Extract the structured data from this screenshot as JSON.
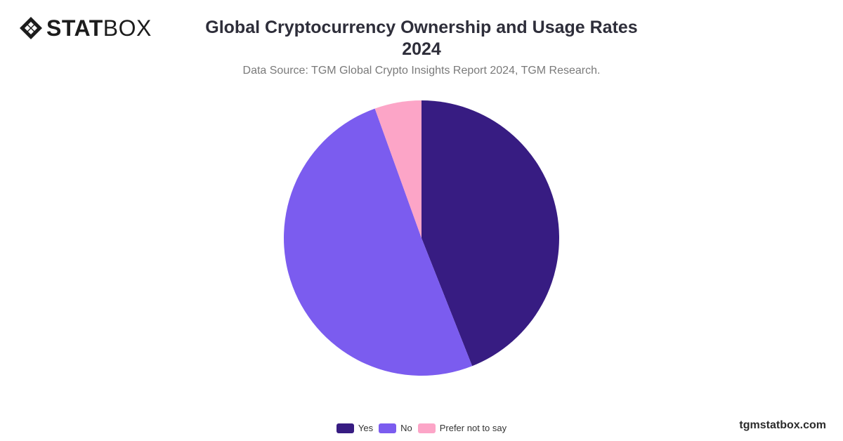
{
  "brand": {
    "bold": "STAT",
    "light": "BOX"
  },
  "header": {
    "title": "Global Cryptocurrency Ownership and Usage Rates 2024",
    "subtitle": "Data Source: TGM Global Crypto Insights Report 2024, TGM Research."
  },
  "footer": {
    "site": "tgmstatbox.com"
  },
  "chart_data": {
    "type": "pie",
    "categories": [
      "Yes",
      "No",
      "Prefer not to say"
    ],
    "values": [
      44,
      50.5,
      5.5
    ],
    "colors": [
      "#371c82",
      "#7b5cef",
      "#fca5c7"
    ],
    "start_angle_deg": 0,
    "direction": "clockwise",
    "legend_position": "bottom-center"
  }
}
